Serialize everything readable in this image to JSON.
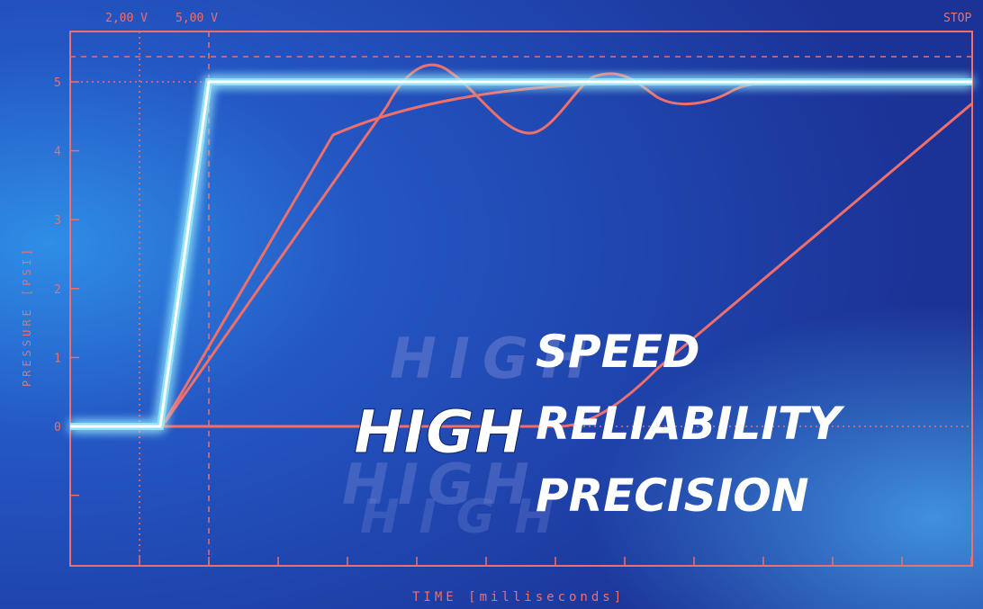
{
  "chart_data": {
    "type": "line",
    "xlabel": "TIME [milliseconds]",
    "ylabel": "PRESSURE [PSI]",
    "ylim": [
      -2,
      5.7
    ],
    "yticks": [
      "5",
      "4",
      "3",
      "2",
      "1",
      "0"
    ],
    "top_markers": [
      "2,00 V",
      "5,00 V",
      "STOP"
    ],
    "grid": false,
    "series": [
      {
        "color": "#7fe8ff",
        "values": "step from 0 to 5"
      },
      {
        "color": "#ef6f6a",
        "values": "linear rise with overshoot oscillation"
      },
      {
        "color": "#ef6f6a",
        "values": "steep rise saturating near 5"
      },
      {
        "color": "#ef6f6a",
        "values": "slow ramp to about 4.7"
      }
    ]
  },
  "slogan": {
    "big_word": "HIGH",
    "words": [
      "SPEED",
      "RELIABILITY",
      "PRECISION"
    ]
  },
  "colors": {
    "background": "#1a3a9e",
    "frame": "#ef6f6a",
    "glow": "#7fe8ff"
  }
}
